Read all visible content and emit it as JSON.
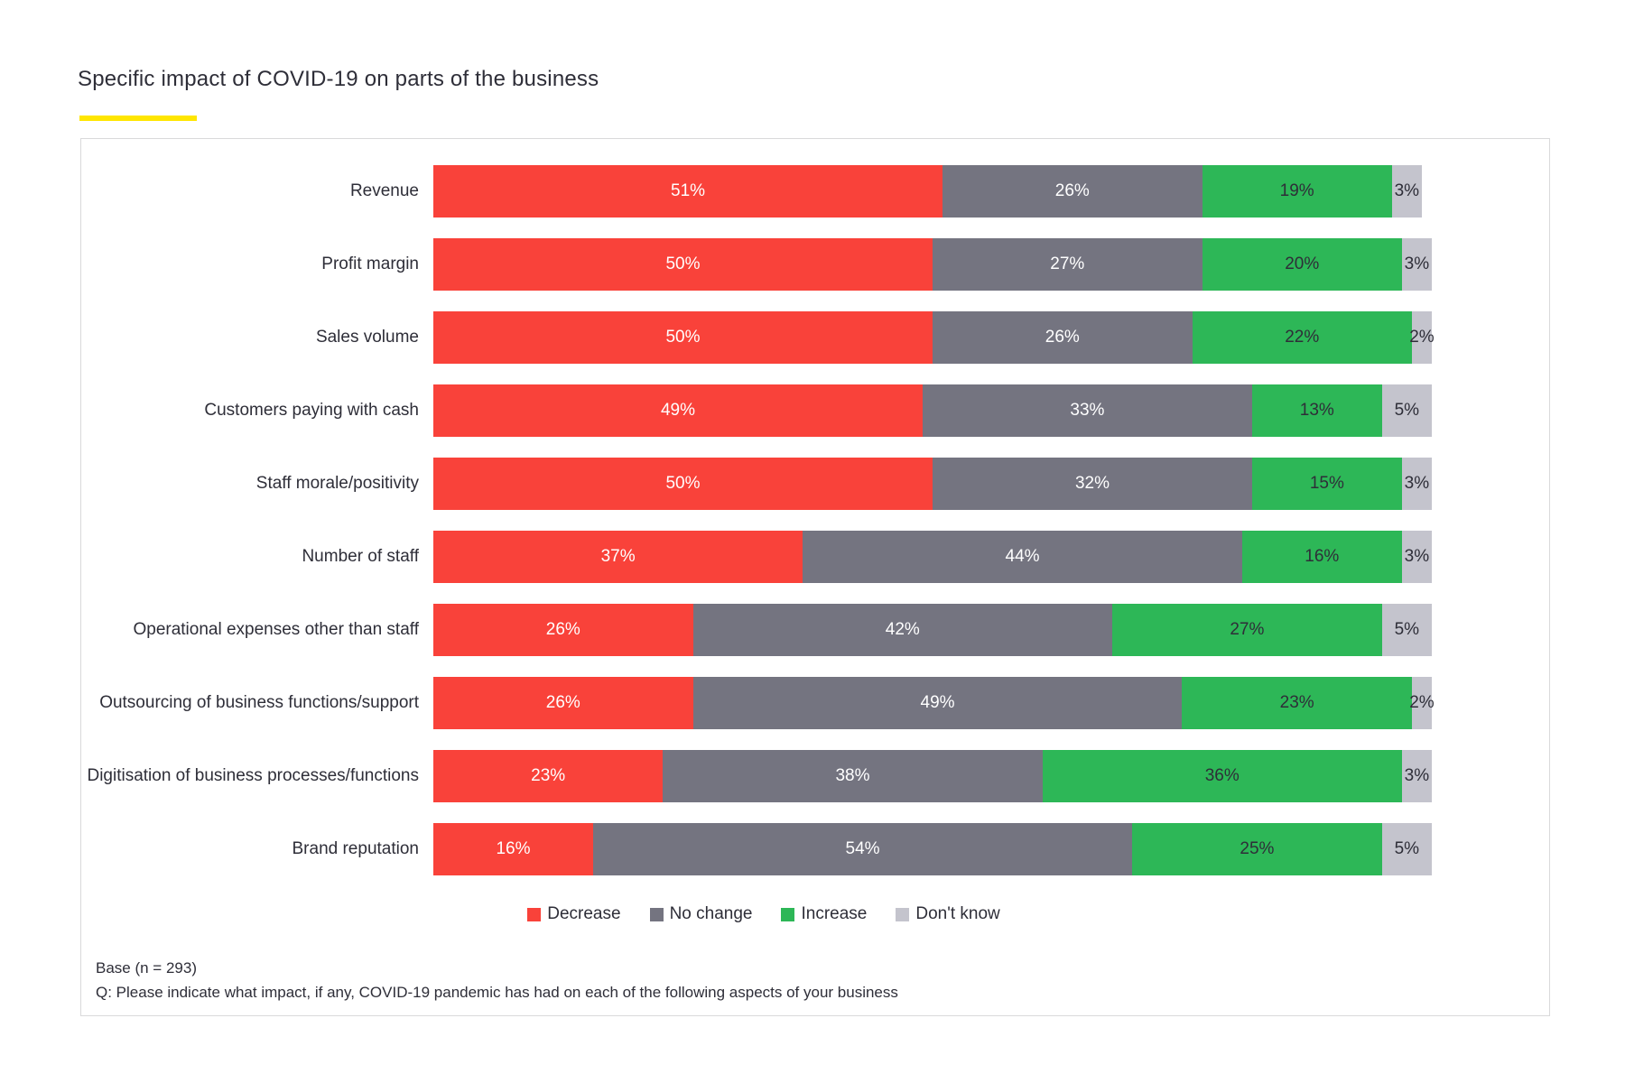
{
  "title": {
    "text": "Specific impact of COVID-19 on parts of the business",
    "underline_color": "#FFE600"
  },
  "chart_data": {
    "type": "bar",
    "orientation": "horizontal",
    "stacked": true,
    "title": "Specific impact of COVID-19 on parts of the business",
    "xlabel": "",
    "ylabel": "",
    "xlim": [
      0,
      100
    ],
    "grid": false,
    "legend_position": "bottom",
    "value_suffix": "%",
    "categories": [
      "Revenue",
      "Profit margin",
      "Sales volume",
      "Customers paying with cash",
      "Staff morale/positivity",
      "Number of staff",
      "Operational expenses other than staff",
      "Outsourcing of business functions/support",
      "Digitisation of business processes/functions",
      "Brand reputation"
    ],
    "series": [
      {
        "name": "Decrease",
        "color": "#F9423A",
        "label_color": "#ffffff",
        "values": [
          51,
          50,
          50,
          49,
          50,
          37,
          26,
          26,
          23,
          16
        ]
      },
      {
        "name": "No change",
        "color": "#747480",
        "label_color": "#ffffff",
        "values": [
          26,
          27,
          26,
          33,
          32,
          44,
          42,
          49,
          38,
          54
        ]
      },
      {
        "name": "Increase",
        "color": "#2DB757",
        "label_color": "#2e2e38",
        "values": [
          19,
          20,
          22,
          13,
          15,
          16,
          27,
          23,
          36,
          25
        ]
      },
      {
        "name": "Don't know",
        "color": "#C4C4CD",
        "label_color": "#2e2e38",
        "values": [
          3,
          3,
          2,
          5,
          3,
          3,
          5,
          2,
          3,
          5
        ]
      }
    ]
  },
  "footer": {
    "base": "Base (n = 293)",
    "question": "Q: Please indicate what impact, if any, COVID-19 pandemic has had on each of the following aspects of your business"
  }
}
